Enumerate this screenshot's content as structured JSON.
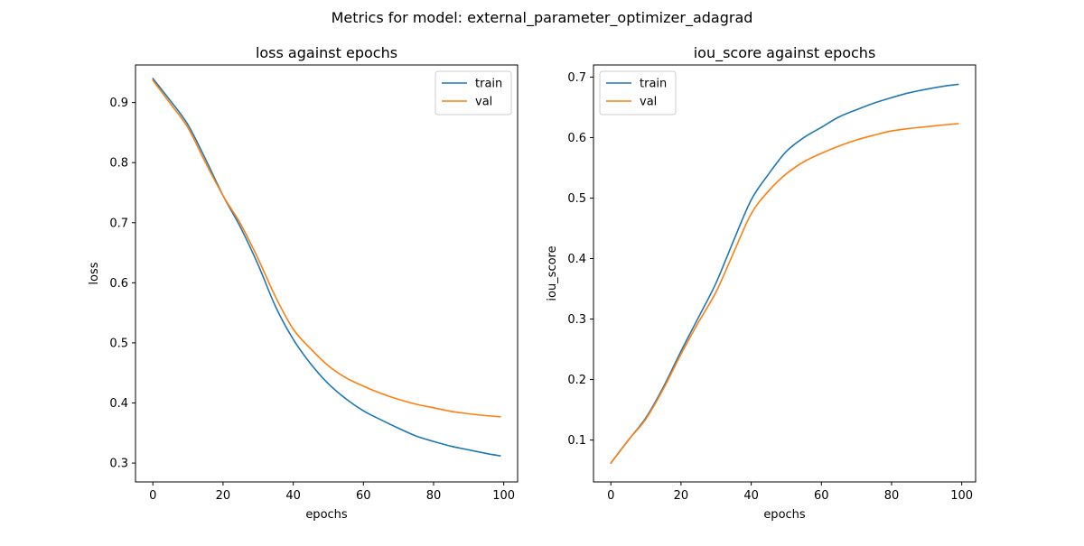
{
  "suptitle": "Metrics for model: external_parameter_optimizer_adagrad",
  "colors": {
    "train": "#1f77b4",
    "val": "#ff7f0e",
    "axis": "#000000",
    "legend_border": "#cccccc"
  },
  "chart_data": [
    {
      "type": "line",
      "title": "loss against epochs",
      "xlabel": "epochs",
      "ylabel": "loss",
      "xlim": [
        -4.95,
        103.95
      ],
      "ylim": [
        0.2686,
        0.9625
      ],
      "xticks": [
        0,
        20,
        40,
        60,
        80,
        100
      ],
      "yticks": [
        0.3,
        0.4,
        0.5,
        0.6,
        0.7,
        0.8,
        0.9
      ],
      "ytick_labels": [
        "0.3",
        "0.4",
        "0.5",
        "0.6",
        "0.7",
        "0.8",
        "0.9"
      ],
      "legend": "upper right",
      "legend_labels": [
        "train",
        "val"
      ],
      "series": [
        {
          "name": "train",
          "color": "#1f77b4",
          "x": [
            0,
            5,
            10,
            15,
            20,
            25,
            30,
            35,
            40,
            45,
            50,
            55,
            60,
            65,
            70,
            75,
            80,
            85,
            90,
            95,
            99
          ],
          "y": [
            0.94,
            0.903,
            0.863,
            0.806,
            0.745,
            0.692,
            0.63,
            0.56,
            0.506,
            0.465,
            0.432,
            0.407,
            0.387,
            0.372,
            0.358,
            0.345,
            0.336,
            0.328,
            0.322,
            0.316,
            0.312
          ]
        },
        {
          "name": "val",
          "color": "#ff7f0e",
          "x": [
            0,
            5,
            10,
            15,
            20,
            25,
            30,
            35,
            40,
            45,
            50,
            55,
            60,
            65,
            70,
            75,
            80,
            85,
            90,
            95,
            99
          ],
          "y": [
            0.937,
            0.898,
            0.858,
            0.8,
            0.745,
            0.698,
            0.64,
            0.576,
            0.523,
            0.49,
            0.462,
            0.442,
            0.428,
            0.416,
            0.406,
            0.398,
            0.392,
            0.386,
            0.382,
            0.379,
            0.377
          ]
        }
      ]
    },
    {
      "type": "line",
      "title": "iou_score against epochs",
      "xlabel": "epochs",
      "ylabel": "iou_score",
      "xlim": [
        -4.95,
        103.95
      ],
      "ylim": [
        0.0308,
        0.72
      ],
      "xticks": [
        0,
        20,
        40,
        60,
        80,
        100
      ],
      "yticks": [
        0.1,
        0.2,
        0.3,
        0.4,
        0.5,
        0.6,
        0.7
      ],
      "ytick_labels": [
        "0.1",
        "0.2",
        "0.3",
        "0.4",
        "0.5",
        "0.6",
        "0.7"
      ],
      "legend": "upper left",
      "legend_labels": [
        "train",
        "val"
      ],
      "series": [
        {
          "name": "train",
          "color": "#1f77b4",
          "x": [
            0,
            5,
            10,
            15,
            20,
            25,
            30,
            35,
            40,
            45,
            50,
            55,
            60,
            65,
            70,
            75,
            80,
            85,
            90,
            95,
            99
          ],
          "y": [
            0.062,
            0.1,
            0.137,
            0.188,
            0.247,
            0.303,
            0.36,
            0.43,
            0.497,
            0.54,
            0.577,
            0.6,
            0.617,
            0.634,
            0.646,
            0.657,
            0.666,
            0.674,
            0.68,
            0.685,
            0.688
          ]
        },
        {
          "name": "val",
          "color": "#ff7f0e",
          "x": [
            0,
            5,
            10,
            15,
            20,
            25,
            30,
            35,
            40,
            45,
            50,
            55,
            60,
            65,
            70,
            75,
            80,
            85,
            90,
            95,
            99
          ],
          "y": [
            0.062,
            0.1,
            0.135,
            0.185,
            0.242,
            0.295,
            0.345,
            0.41,
            0.474,
            0.512,
            0.54,
            0.56,
            0.574,
            0.586,
            0.596,
            0.604,
            0.611,
            0.615,
            0.618,
            0.621,
            0.623
          ]
        }
      ]
    }
  ]
}
